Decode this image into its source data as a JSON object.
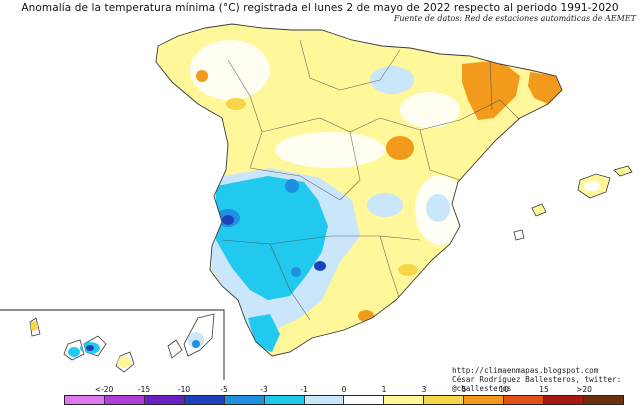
{
  "header": {
    "title": "Anomalía de la temperatura mínima (°C) registrada el lunes 2 de mayo de 2022 respecto al periodo 1991-2020",
    "source": "Fuente de datos: Red de estaciones automáticas de AEMET"
  },
  "credits": {
    "url": "http://climaenmapas.blogspot.com",
    "author": "César Rodríguez Ballesteros, twitter: @cballesteros"
  },
  "legend": {
    "ticks": [
      "<-20",
      "-15",
      "-10",
      "-5",
      "-3",
      "-1",
      "0",
      "1",
      "3",
      "5",
      "10",
      "15",
      ">20"
    ],
    "colors": [
      "#e079f0",
      "#b040d8",
      "#6a1fc0",
      "#1a43b8",
      "#1f8fe0",
      "#22c9ee",
      "#c9e6fa",
      "#ffffff",
      "#fff79a",
      "#f8d548",
      "#f29a1c",
      "#e0521a",
      "#a8170e",
      "#6e2e10"
    ]
  },
  "map_colors": {
    "sea": "#ffffff",
    "border": "#3a3a3a",
    "anomaly_0_1": "#ffffff",
    "anomaly_1_3": "#fff79a",
    "anomaly_3_5": "#f8d548",
    "anomaly_5_10": "#f29a1c",
    "anomaly_m1_0": "#c9e6fa",
    "anomaly_m3_m1": "#22c9ee",
    "anomaly_m5_m3": "#1f8fe0",
    "anomaly_m10_m5": "#1a43b8"
  }
}
